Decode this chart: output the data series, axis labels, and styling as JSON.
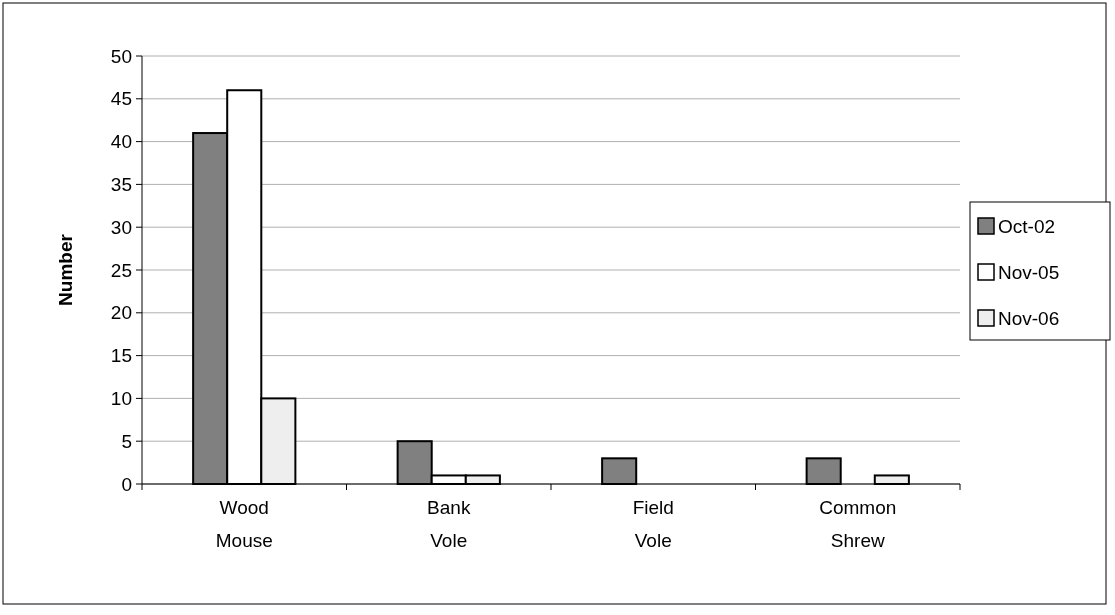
{
  "chart_data": {
    "type": "bar",
    "ylabel": "Number",
    "categories": [
      "Wood Mouse",
      "Bank Vole",
      "Field Vole",
      "Common Shrew"
    ],
    "series": [
      {
        "name": "Oct-02",
        "color": "#808080",
        "values": [
          41,
          5,
          3,
          3
        ]
      },
      {
        "name": "Nov-05",
        "color": "#ffffff",
        "values": [
          46,
          1,
          0,
          0
        ]
      },
      {
        "name": "Nov-06",
        "color": "#eeeeee",
        "values": [
          10,
          1,
          0,
          1
        ]
      }
    ],
    "ylim": [
      0,
      50
    ],
    "yticks": [
      0,
      5,
      10,
      15,
      20,
      25,
      30,
      35,
      40,
      45,
      50
    ],
    "grid": "y",
    "legend": "right"
  }
}
